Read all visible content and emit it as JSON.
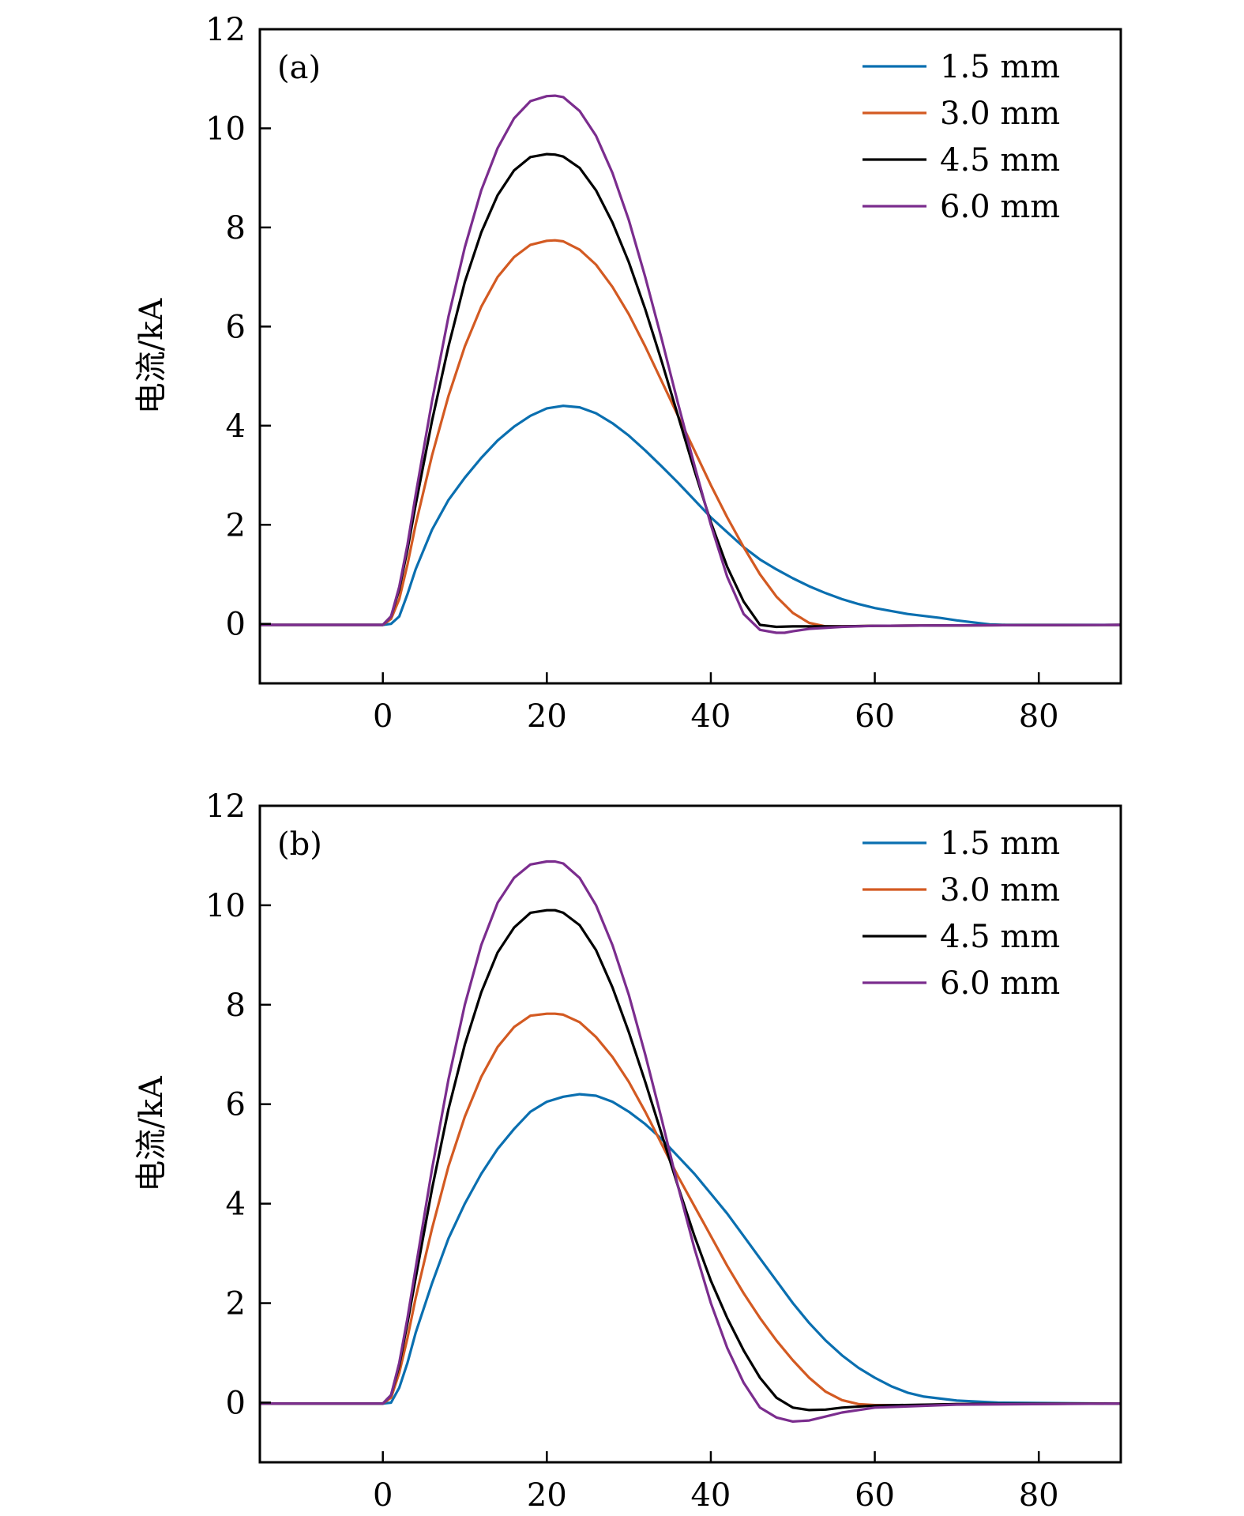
{
  "chart_data": [
    {
      "type": "line",
      "panel_label": "(a)",
      "xlabel": "",
      "ylabel": "电流/kA",
      "xlim": [
        -15,
        90
      ],
      "ylim": [
        -1.2,
        12
      ],
      "xticks": [
        0,
        20,
        40,
        60,
        80
      ],
      "yticks": [
        0,
        2,
        4,
        6,
        8,
        10,
        12
      ],
      "grid": false,
      "legend_position": "top-right",
      "series": [
        {
          "name": "1.5 mm",
          "color": "#0a6fb0",
          "x": [
            -15,
            0,
            1,
            2,
            3,
            4,
            6,
            8,
            10,
            12,
            14,
            16,
            18,
            20,
            22,
            24,
            26,
            28,
            30,
            32,
            34,
            36,
            38,
            40,
            42,
            44,
            46,
            48,
            50,
            52,
            54,
            56,
            58,
            60,
            62,
            64,
            66,
            68,
            70,
            72,
            74,
            76,
            80,
            90
          ],
          "y": [
            -0.02,
            -0.02,
            0.0,
            0.15,
            0.6,
            1.1,
            1.9,
            2.5,
            2.95,
            3.35,
            3.7,
            3.98,
            4.2,
            4.35,
            4.4,
            4.37,
            4.25,
            4.05,
            3.8,
            3.5,
            3.18,
            2.85,
            2.5,
            2.15,
            1.85,
            1.55,
            1.3,
            1.1,
            0.92,
            0.76,
            0.62,
            0.5,
            0.4,
            0.32,
            0.26,
            0.2,
            0.16,
            0.12,
            0.07,
            0.03,
            -0.01,
            -0.02,
            -0.02,
            -0.02
          ]
        },
        {
          "name": "3.0 mm",
          "color": "#d35a22",
          "x": [
            -15,
            0,
            1,
            2,
            3,
            4,
            6,
            8,
            10,
            12,
            14,
            16,
            18,
            20,
            21,
            22,
            24,
            26,
            28,
            30,
            32,
            34,
            36,
            38,
            40,
            42,
            44,
            46,
            48,
            50,
            52,
            54,
            56,
            60,
            70,
            90
          ],
          "y": [
            -0.02,
            -0.02,
            0.1,
            0.5,
            1.2,
            2.0,
            3.4,
            4.6,
            5.6,
            6.4,
            7.0,
            7.4,
            7.65,
            7.73,
            7.74,
            7.72,
            7.55,
            7.25,
            6.8,
            6.25,
            5.6,
            4.9,
            4.2,
            3.5,
            2.8,
            2.15,
            1.55,
            1.0,
            0.55,
            0.22,
            0.02,
            -0.05,
            -0.05,
            -0.04,
            -0.03,
            -0.02
          ]
        },
        {
          "name": "4.5 mm",
          "color": "#000000",
          "x": [
            -15,
            0,
            1,
            2,
            3,
            4,
            6,
            8,
            10,
            12,
            14,
            16,
            18,
            20,
            21,
            22,
            24,
            26,
            28,
            30,
            32,
            34,
            36,
            38,
            40,
            42,
            44,
            46,
            48,
            50,
            52,
            56,
            60,
            70,
            90
          ],
          "y": [
            -0.02,
            -0.02,
            0.15,
            0.7,
            1.5,
            2.4,
            4.1,
            5.6,
            6.9,
            7.9,
            8.65,
            9.15,
            9.42,
            9.48,
            9.47,
            9.43,
            9.2,
            8.75,
            8.1,
            7.3,
            6.35,
            5.3,
            4.2,
            3.1,
            2.05,
            1.15,
            0.45,
            -0.02,
            -0.06,
            -0.05,
            -0.05,
            -0.05,
            -0.04,
            -0.03,
            -0.02
          ]
        },
        {
          "name": "6.0 mm",
          "color": "#7b2d8e",
          "x": [
            -15,
            0,
            1,
            2,
            3,
            4,
            6,
            8,
            10,
            12,
            14,
            16,
            18,
            20,
            21,
            22,
            24,
            26,
            28,
            30,
            32,
            34,
            36,
            38,
            40,
            42,
            44,
            46,
            48,
            49,
            50,
            52,
            56,
            60,
            70,
            90
          ],
          "y": [
            -0.02,
            -0.02,
            0.15,
            0.75,
            1.6,
            2.6,
            4.5,
            6.2,
            7.6,
            8.75,
            9.6,
            10.2,
            10.55,
            10.65,
            10.66,
            10.63,
            10.35,
            9.85,
            9.1,
            8.15,
            7.0,
            5.75,
            4.45,
            3.2,
            2.0,
            0.95,
            0.2,
            -0.12,
            -0.18,
            -0.18,
            -0.15,
            -0.1,
            -0.06,
            -0.04,
            -0.03,
            -0.02
          ]
        }
      ]
    },
    {
      "type": "line",
      "panel_label": "(b)",
      "xlabel": "",
      "ylabel": "电流/kA",
      "xlim": [
        -15,
        90
      ],
      "ylim": [
        -1.2,
        12
      ],
      "xticks": [
        0,
        20,
        40,
        60,
        80
      ],
      "yticks": [
        0,
        2,
        4,
        6,
        8,
        10,
        12
      ],
      "grid": false,
      "legend_position": "top-right",
      "series": [
        {
          "name": "1.5 mm",
          "color": "#0a6fb0",
          "x": [
            -15,
            0,
            1,
            2,
            3,
            4,
            6,
            8,
            10,
            12,
            14,
            16,
            18,
            20,
            22,
            24,
            26,
            28,
            30,
            32,
            34,
            36,
            38,
            40,
            42,
            44,
            46,
            48,
            50,
            52,
            54,
            56,
            58,
            60,
            62,
            64,
            66,
            70,
            75,
            90
          ],
          "y": [
            -0.02,
            -0.02,
            0.0,
            0.3,
            0.8,
            1.4,
            2.4,
            3.3,
            4.0,
            4.6,
            5.1,
            5.5,
            5.85,
            6.05,
            6.15,
            6.2,
            6.17,
            6.05,
            5.85,
            5.6,
            5.3,
            4.95,
            4.6,
            4.2,
            3.8,
            3.35,
            2.9,
            2.45,
            2.0,
            1.6,
            1.25,
            0.95,
            0.7,
            0.5,
            0.33,
            0.2,
            0.12,
            0.04,
            0.0,
            -0.02
          ]
        },
        {
          "name": "3.0 mm",
          "color": "#d35a22",
          "x": [
            -15,
            0,
            1,
            2,
            3,
            4,
            6,
            8,
            10,
            12,
            14,
            16,
            18,
            20,
            21,
            22,
            24,
            26,
            28,
            30,
            32,
            34,
            36,
            38,
            40,
            42,
            44,
            46,
            48,
            50,
            52,
            54,
            56,
            58,
            60,
            65,
            70,
            90
          ],
          "y": [
            -0.02,
            -0.02,
            0.1,
            0.6,
            1.3,
            2.1,
            3.5,
            4.75,
            5.75,
            6.55,
            7.15,
            7.55,
            7.78,
            7.82,
            7.82,
            7.8,
            7.65,
            7.35,
            6.95,
            6.45,
            5.85,
            5.2,
            4.55,
            3.95,
            3.35,
            2.75,
            2.2,
            1.7,
            1.25,
            0.85,
            0.5,
            0.22,
            0.05,
            -0.03,
            -0.05,
            -0.05,
            -0.03,
            -0.02
          ]
        },
        {
          "name": "4.5 mm",
          "color": "#000000",
          "x": [
            -15,
            0,
            1,
            2,
            3,
            4,
            6,
            8,
            10,
            12,
            14,
            16,
            18,
            20,
            21,
            22,
            24,
            26,
            28,
            30,
            32,
            34,
            36,
            38,
            40,
            42,
            44,
            46,
            48,
            50,
            52,
            54,
            56,
            60,
            70,
            90
          ],
          "y": [
            -0.02,
            -0.02,
            0.15,
            0.75,
            1.6,
            2.5,
            4.3,
            5.9,
            7.2,
            8.25,
            9.05,
            9.55,
            9.85,
            9.9,
            9.9,
            9.85,
            9.6,
            9.1,
            8.35,
            7.45,
            6.45,
            5.4,
            4.35,
            3.35,
            2.45,
            1.7,
            1.05,
            0.5,
            0.1,
            -0.1,
            -0.15,
            -0.14,
            -0.1,
            -0.06,
            -0.03,
            -0.02
          ]
        },
        {
          "name": "6.0 mm",
          "color": "#7b2d8e",
          "x": [
            -15,
            0,
            1,
            2,
            3,
            4,
            6,
            8,
            10,
            12,
            14,
            16,
            18,
            20,
            21,
            22,
            24,
            26,
            28,
            30,
            32,
            34,
            36,
            38,
            40,
            42,
            44,
            46,
            48,
            50,
            52,
            54,
            56,
            60,
            70,
            90
          ],
          "y": [
            -0.02,
            -0.02,
            0.15,
            0.8,
            1.7,
            2.7,
            4.7,
            6.5,
            8.0,
            9.2,
            10.05,
            10.55,
            10.82,
            10.88,
            10.88,
            10.84,
            10.55,
            10.0,
            9.2,
            8.2,
            7.0,
            5.7,
            4.35,
            3.1,
            2.0,
            1.1,
            0.4,
            -0.1,
            -0.3,
            -0.38,
            -0.36,
            -0.28,
            -0.2,
            -0.1,
            -0.04,
            -0.02
          ]
        }
      ]
    }
  ]
}
